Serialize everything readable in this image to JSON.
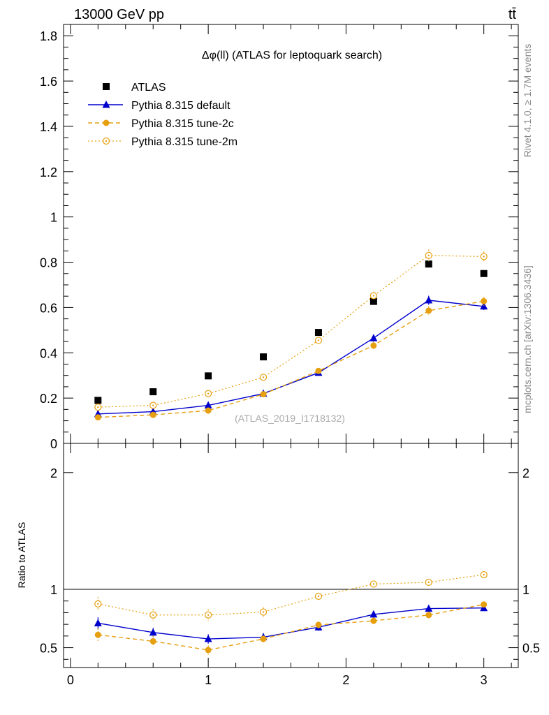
{
  "header": {
    "energy_label": "13000 GeV pp",
    "process_label": "tt̄"
  },
  "side_labels": {
    "rivet": "Rivet 4.1.0, ≥ 1.7M events",
    "mcplots": "mcplots.cern.ch [arXiv:1306.3436]"
  },
  "colors": {
    "data": "#000000",
    "default": "#0000cc",
    "tune2c": "#e6a00f",
    "tune2m": "#e6a00f"
  },
  "chart_data": [
    {
      "type": "line",
      "title": "Δφ(ll) (ATLAS for leptoquark search)",
      "watermark": "(ATLAS_2019_I1718132)",
      "xlabel": "",
      "ylabel": "",
      "xlim": [
        -0.05,
        3.25
      ],
      "ylim": [
        0,
        1.85
      ],
      "yticks": [
        0,
        0.2,
        0.4,
        0.6,
        0.8,
        1,
        1.2,
        1.4,
        1.6,
        1.8
      ],
      "ytick_labels": [
        "0",
        "0.2",
        "0.4",
        "0.6",
        "0.8",
        "1",
        "1.2",
        "1.4",
        "1.6",
        "1.8"
      ],
      "x": [
        0.2,
        0.6,
        1.0,
        1.4,
        1.8,
        2.2,
        2.6,
        3.0
      ],
      "legend_position": "top-left",
      "series": [
        {
          "name": "ATLAS",
          "style": "data",
          "values": [
            0.19,
            0.228,
            0.298,
            0.382,
            0.49,
            0.627,
            0.792,
            0.75
          ],
          "errors": [
            0.005,
            0.005,
            0.006,
            0.006,
            0.007,
            0.009,
            0.01,
            0.01
          ]
        },
        {
          "name": "Pythia 8.315 default",
          "style": "default",
          "values": [
            0.13,
            0.14,
            0.168,
            0.22,
            0.312,
            0.465,
            0.632,
            0.605
          ],
          "errors": [
            0.008,
            0.008,
            0.009,
            0.01,
            0.012,
            0.016,
            0.02,
            0.016
          ]
        },
        {
          "name": "Pythia 8.315 tune-2c",
          "style": "tune2c",
          "values": [
            0.115,
            0.126,
            0.145,
            0.217,
            0.32,
            0.432,
            0.586,
            0.628
          ],
          "errors": [
            0.008,
            0.008,
            0.009,
            0.01,
            0.013,
            0.016,
            0.02,
            0.02
          ]
        },
        {
          "name": "Pythia 8.315 tune-2m",
          "style": "tune2m",
          "values": [
            0.16,
            0.168,
            0.22,
            0.292,
            0.455,
            0.652,
            0.83,
            0.825
          ],
          "errors": [
            0.01,
            0.01,
            0.01,
            0.012,
            0.014,
            0.018,
            0.026,
            0.022
          ]
        }
      ]
    },
    {
      "type": "line",
      "title": "",
      "xlabel": "",
      "ylabel": "Ratio to ATLAS",
      "xlim": [
        -0.05,
        3.25
      ],
      "ylim": [
        0.33,
        2.25
      ],
      "yticks": [
        0.5,
        1,
        2
      ],
      "ytick_labels": [
        "0.5",
        "1",
        "2"
      ],
      "xticks": [
        0,
        1,
        2,
        3
      ],
      "xtick_labels": [
        "0",
        "1",
        "2",
        "3"
      ],
      "reference_line": 1,
      "x": [
        0.2,
        0.6,
        1.0,
        1.4,
        1.8,
        2.2,
        2.6,
        3.0
      ],
      "series": [
        {
          "name": "Pythia 8.315 default",
          "style": "default",
          "values": [
            0.71,
            0.63,
            0.575,
            0.59,
            0.675,
            0.785,
            0.835,
            0.84
          ],
          "errors": [
            0.05,
            0.04,
            0.04,
            0.035,
            0.03,
            0.03,
            0.028,
            0.02
          ]
        },
        {
          "name": "Pythia 8.315 tune-2c",
          "style": "tune2c",
          "values": [
            0.61,
            0.555,
            0.48,
            0.575,
            0.695,
            0.73,
            0.78,
            0.87
          ],
          "errors": [
            0.055,
            0.05,
            0.04,
            0.03,
            0.03,
            0.028,
            0.028,
            0.025
          ]
        },
        {
          "name": "Pythia 8.315 tune-2m",
          "style": "tune2m",
          "values": [
            0.875,
            0.78,
            0.78,
            0.805,
            0.94,
            1.045,
            1.06,
            1.125
          ],
          "errors": [
            0.06,
            0.05,
            0.05,
            0.04,
            0.03,
            0.028,
            0.03,
            0.028
          ]
        }
      ]
    }
  ]
}
